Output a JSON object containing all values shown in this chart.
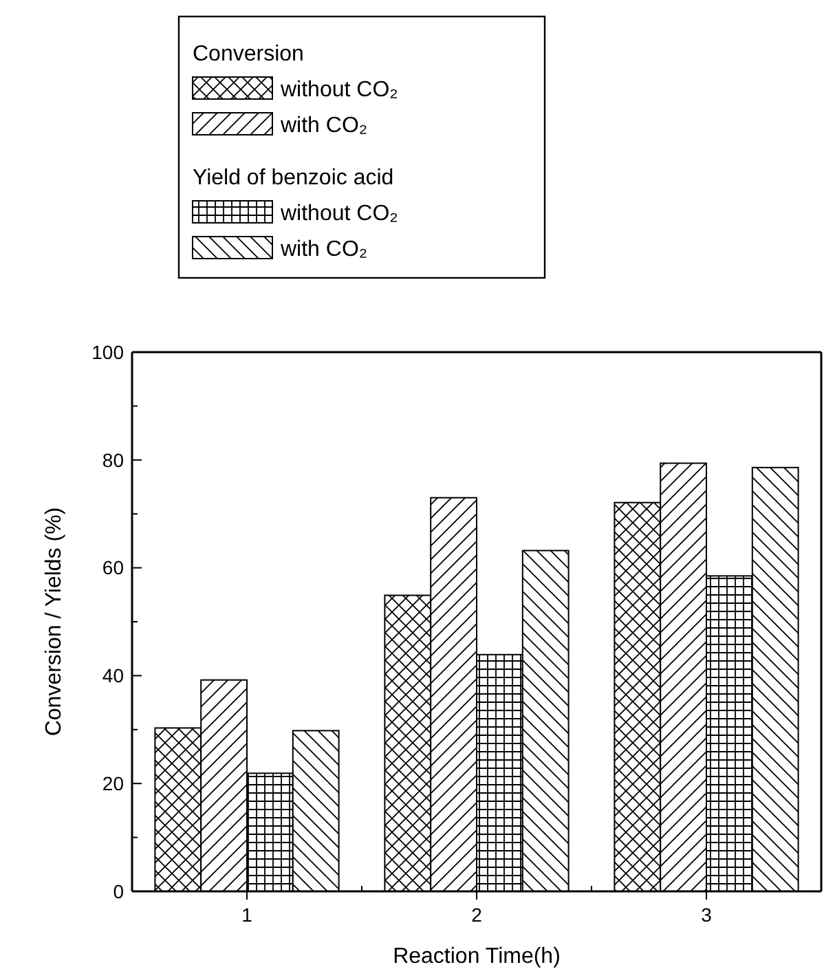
{
  "chart_data": {
    "type": "bar",
    "xlabel": "Reaction Time(h)",
    "ylabel": "Conversion / Yields (%)",
    "categories": [
      "1",
      "2",
      "3"
    ],
    "series": [
      {
        "name": "without CO₂",
        "color": "#000000",
        "values": [
          30.3,
          54.9,
          72.1
        ]
      },
      {
        "name": "with CO₂",
        "color": "#000000",
        "values": [
          39.2,
          73.0,
          79.4
        ]
      },
      {
        "name": "without CO₂",
        "color": "#000000",
        "values": [
          21.9,
          43.9,
          58.5
        ]
      },
      {
        "name": "with CO₂",
        "color": "#000000",
        "values": [
          29.8,
          63.2,
          78.6
        ]
      }
    ],
    "annotations": [
      "Conversion",
      "Yield of benzoic acid"
    ],
    "ylim": [
      0,
      100
    ],
    "yticks": [
      0,
      20,
      40,
      60,
      80,
      100,
      {
        "value": 10,
        "label": null
      },
      {
        "value": 30,
        "label": null
      },
      {
        "value": 50,
        "label": null
      },
      {
        "value": 70,
        "label": null
      },
      {
        "value": 90,
        "label": null
      }
    ],
    "grid": false,
    "legend": "top left"
  }
}
